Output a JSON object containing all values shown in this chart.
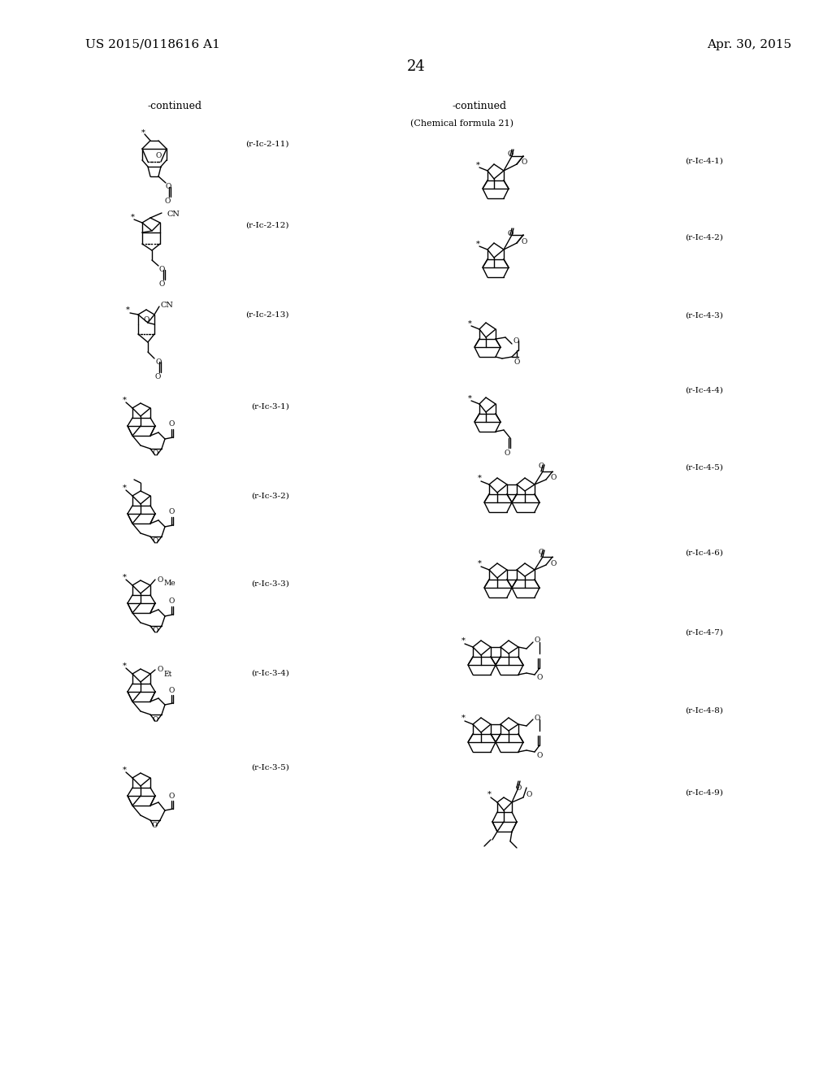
{
  "patent_number": "US 2015/0118616 A1",
  "patent_date": "Apr. 30, 2015",
  "page_number": "24",
  "left_continued": "-continued",
  "right_continued": "-continued",
  "chem_formula_label": "(Chemical formula 21)",
  "left_labels": [
    "(r-Ic-2-11)",
    "(r-Ic-2-12)",
    "(r-Ic-2-13)",
    "(r-Ic-3-1)",
    "(r-Ic-3-2)",
    "(r-Ic-3-3)",
    "(r-Ic-3-4)",
    "(r-Ic-3-5)"
  ],
  "right_labels": [
    "(r-Ic-4-1)",
    "(r-Ic-4-2)",
    "(r-Ic-4-3)",
    "(r-Ic-4-4)",
    "(r-Ic-4-5)",
    "(r-Ic-4-6)",
    "(r-Ic-4-7)",
    "(r-Ic-4-8)",
    "(r-Ic-4-9)"
  ],
  "bg": "#ffffff",
  "fg": "#000000"
}
